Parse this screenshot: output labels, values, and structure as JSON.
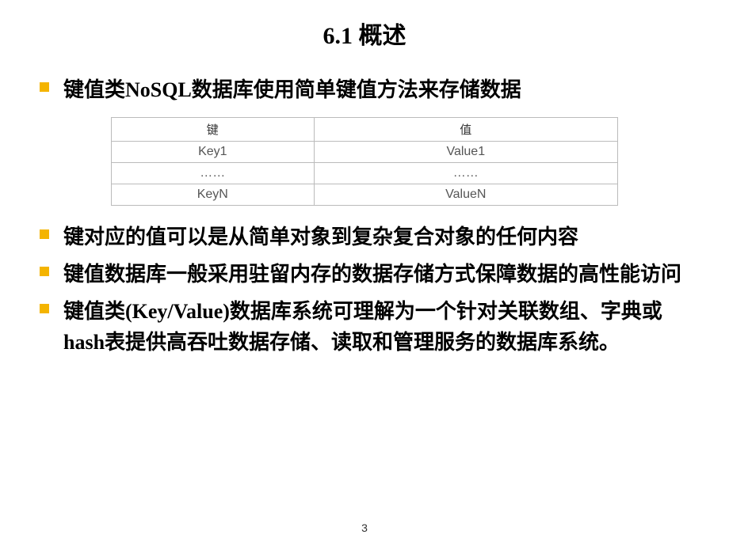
{
  "title": "6.1 概述",
  "bullets": {
    "b1": "键值类NoSQL数据库使用简单键值方法来存储数据",
    "b2": "键对应的值可以是从简单对象到复杂复合对象的任何内容",
    "b3": "键值数据库一般采用驻留内存的数据存储方式保障数据的高性能访问",
    "b4": " 键值类(Key/Value)数据库系统可理解为一个针对关联数组、字典或hash表提供高吞吐数据存储、读取和管理服务的数据库系统。"
  },
  "table": {
    "columns": [
      "键",
      "值"
    ],
    "rows": [
      [
        "Key1",
        "Value1"
      ],
      [
        "……",
        "……"
      ],
      [
        "KeyN",
        "ValueN"
      ]
    ],
    "border_color": "#bbbbbb",
    "header_fontsize": 15,
    "cell_fontsize": 16,
    "col_widths": [
      "40%",
      "60%"
    ]
  },
  "page_number": "3",
  "styles": {
    "bullet_color": "#f4b400",
    "title_fontsize": 30,
    "bullet_fontsize": 26,
    "background_color": "#ffffff",
    "text_color": "#000000"
  }
}
